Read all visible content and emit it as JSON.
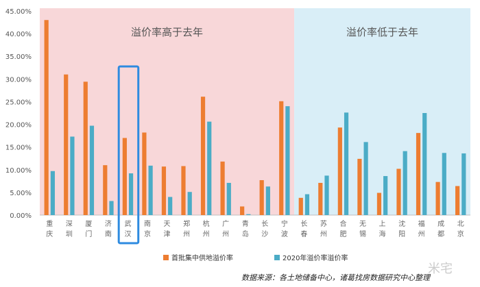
{
  "chart_data": {
    "type": "bar",
    "categories": [
      "重\n庆",
      "深\n圳",
      "厦\n门",
      "济\n南",
      "武\n汉",
      "南\n京",
      "天\n津",
      "郑\n州",
      "杭\n州",
      "广\n州",
      "青\n岛",
      "长\n沙",
      "宁\n波",
      "长\n春",
      "苏\n州",
      "合\n肥",
      "无\n锡",
      "上\n海",
      "沈\n阳",
      "福\n州",
      "成\n都",
      "北\n京"
    ],
    "series": [
      {
        "name": "首批集中供地溢价率",
        "color": "#ED7D31",
        "values": [
          43.0,
          31.0,
          29.4,
          11.0,
          17.0,
          18.2,
          10.7,
          10.8,
          26.1,
          11.8,
          1.9,
          7.7,
          25.1,
          3.8,
          7.1,
          19.3,
          12.4,
          4.9,
          10.2,
          18.1,
          7.3,
          6.4
        ]
      },
      {
        "name": "2020年溢价率溢价率",
        "color": "#4BACC6",
        "values": [
          9.7,
          17.3,
          19.7,
          3.1,
          9.2,
          10.9,
          4.0,
          5.1,
          20.6,
          7.1,
          0.2,
          6.3,
          24.0,
          4.6,
          8.7,
          22.6,
          16.1,
          8.6,
          14.1,
          22.5,
          13.7,
          13.6
        ]
      }
    ],
    "ylim": [
      0,
      45
    ],
    "yticks": [
      "0.00%",
      "5.00%",
      "10.00%",
      "15.00%",
      "20.00%",
      "25.00%",
      "30.00%",
      "35.00%",
      "40.00%",
      "45.00%"
    ],
    "regions": [
      {
        "label": "溢价率高于去年",
        "color": "#F8D7D9",
        "categories_range": [
          0,
          12
        ]
      },
      {
        "label": "溢价率低于去年",
        "color": "#D9EEF7",
        "categories_range": [
          13,
          21
        ]
      }
    ],
    "highlight": {
      "category_index": 4,
      "color": "#2E8BE0"
    },
    "grid": false,
    "legend_position": "bottom"
  },
  "source_note": "数据来源：各土地储备中心，诸葛找房数据研究中心整理",
  "watermark": "米宅"
}
